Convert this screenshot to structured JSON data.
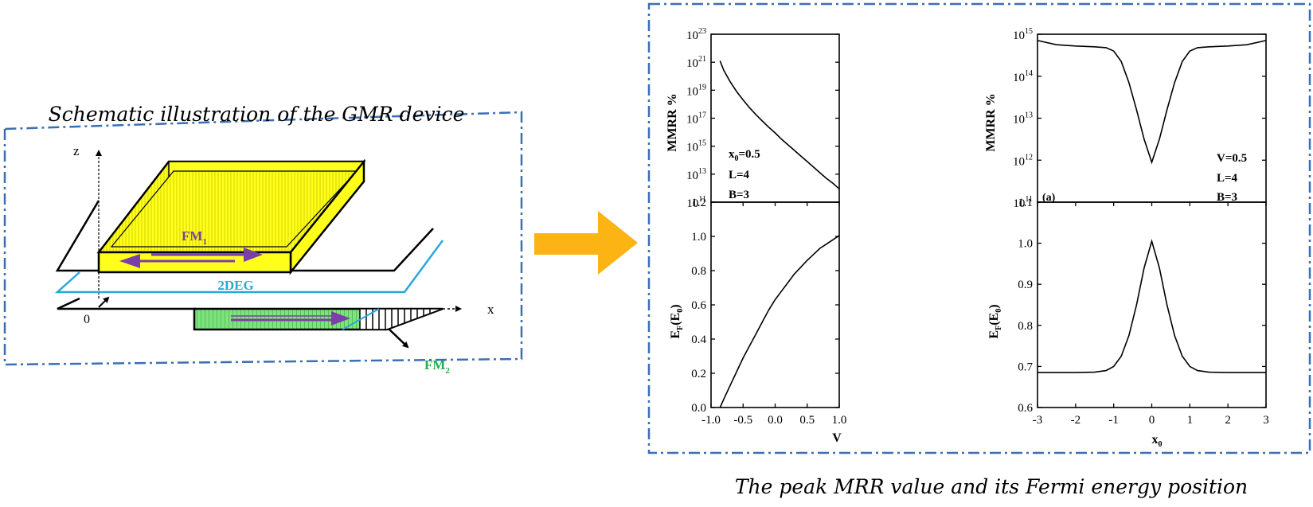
{
  "left_panel": {
    "title": "Schematic illustration of the GMR device",
    "labels": {
      "z": "z",
      "x": "x",
      "origin": "0",
      "fm1_base": "FM",
      "fm1_sub": "1",
      "deg": "2DEG",
      "fm2_base": "FM",
      "fm2_sub": "2"
    }
  },
  "bottom_caption": "The peak MRR value and its Fermi energy position",
  "colors": {
    "frame_dashdot": "#3a6fb5",
    "fm1_fill": "#ffff1a",
    "fm2_fill": "#7ee37e",
    "arrow_purple": "#7b3fa8",
    "deg_line": "#29a8d8",
    "deg_text": "#29a8d8",
    "fm2_text": "#22b04a",
    "big_arrow": "#fbb414"
  },
  "plots": {
    "tl": {
      "ylabel": "MMRR %",
      "yticks": [
        {
          "base": "10",
          "exp": "11"
        },
        {
          "base": "10",
          "exp": "13"
        },
        {
          "base": "10",
          "exp": "15"
        },
        {
          "base": "10",
          "exp": "17"
        },
        {
          "base": "10",
          "exp": "19"
        },
        {
          "base": "10",
          "exp": "21"
        },
        {
          "base": "10",
          "exp": "23"
        }
      ],
      "annot": [
        "x0=0.5",
        "L=4",
        "B=3"
      ]
    },
    "bl": {
      "ylabel": "EF(E0)",
      "xlabel": "V",
      "yticks": [
        "0.0",
        "0.2",
        "0.4",
        "0.6",
        "0.8",
        "1.0",
        "1.2"
      ],
      "xticks": [
        "-1.0",
        "-0.5",
        "0.0",
        "0.5",
        "1.0"
      ]
    },
    "tr": {
      "ylabel": "MMRR %",
      "yticks": [
        {
          "base": "10",
          "exp": "11"
        },
        {
          "base": "10",
          "exp": "12"
        },
        {
          "base": "10",
          "exp": "13"
        },
        {
          "base": "10",
          "exp": "14"
        },
        {
          "base": "10",
          "exp": "15"
        }
      ],
      "tag": "(a)",
      "annot": [
        "V=0.5",
        "L=4",
        "B=3"
      ]
    },
    "br": {
      "ylabel": "EF(E0)",
      "xlabel": "x0",
      "yticks": [
        "0.6",
        "0.7",
        "0.8",
        "0.9",
        "1.0",
        "1.1"
      ],
      "xticks": [
        "-3",
        "-2",
        "-1",
        "0",
        "1",
        "2",
        "3"
      ]
    }
  },
  "chart_data": [
    {
      "type": "line",
      "x": [
        -0.86,
        -0.8,
        -0.7,
        -0.6,
        -0.5,
        -0.4,
        -0.3,
        -0.2,
        -0.1,
        0.0,
        0.1,
        0.2,
        0.3,
        0.4,
        0.5,
        0.6,
        0.7,
        0.8,
        0.9,
        1.0
      ],
      "y_log10": [
        21.1,
        20.4,
        19.6,
        18.9,
        18.3,
        17.75,
        17.25,
        16.8,
        16.35,
        15.95,
        15.5,
        15.1,
        14.7,
        14.3,
        13.9,
        13.5,
        13.1,
        12.7,
        12.35,
        11.95
      ],
      "xlim": [
        -1.0,
        1.0
      ],
      "ylim_log10": [
        11,
        23
      ]
    },
    {
      "type": "line",
      "x": [
        -0.86,
        -0.8,
        -0.7,
        -0.6,
        -0.5,
        -0.4,
        -0.3,
        -0.2,
        -0.1,
        0.0,
        0.1,
        0.2,
        0.3,
        0.4,
        0.5,
        0.6,
        0.7,
        0.8,
        0.9,
        1.0
      ],
      "y": [
        0.0,
        0.05,
        0.13,
        0.21,
        0.29,
        0.36,
        0.43,
        0.5,
        0.57,
        0.63,
        0.68,
        0.73,
        0.78,
        0.82,
        0.86,
        0.895,
        0.93,
        0.955,
        0.98,
        1.005
      ],
      "xlim": [
        -1.0,
        1.0
      ],
      "ylim": [
        0.0,
        1.2
      ]
    },
    {
      "type": "line",
      "x": [
        -3,
        -2.5,
        -2,
        -1.5,
        -1.2,
        -1.0,
        -0.8,
        -0.6,
        -0.4,
        -0.2,
        0.0,
        0.2,
        0.4,
        0.6,
        0.8,
        1.0,
        1.2,
        1.5,
        2,
        2.5,
        3
      ],
      "y_log10": [
        14.85,
        14.75,
        14.72,
        14.7,
        14.68,
        14.6,
        14.35,
        13.85,
        13.2,
        12.5,
        11.95,
        12.5,
        13.2,
        13.85,
        14.35,
        14.6,
        14.68,
        14.7,
        14.72,
        14.75,
        14.85
      ],
      "xlim": [
        -3,
        3
      ],
      "ylim_log10": [
        11,
        15
      ]
    },
    {
      "type": "line",
      "x": [
        -3,
        -2,
        -1.5,
        -1.2,
        -1.0,
        -0.8,
        -0.6,
        -0.4,
        -0.2,
        0.0,
        0.2,
        0.4,
        0.6,
        0.8,
        1.0,
        1.2,
        1.5,
        2,
        3
      ],
      "y": [
        0.685,
        0.685,
        0.686,
        0.69,
        0.7,
        0.725,
        0.775,
        0.85,
        0.94,
        1.005,
        0.94,
        0.85,
        0.775,
        0.725,
        0.7,
        0.69,
        0.686,
        0.685,
        0.685
      ],
      "xlim": [
        -3,
        3
      ],
      "ylim": [
        0.6,
        1.1
      ]
    }
  ]
}
